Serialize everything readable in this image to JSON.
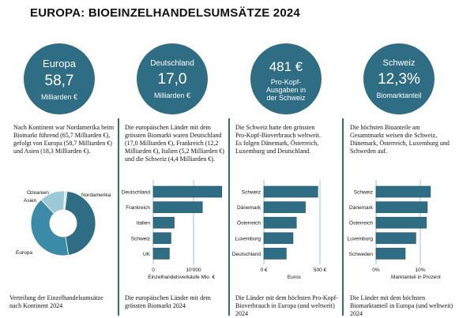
{
  "title": "EUROPA: BIOEINZELHANDELSUMSÄTZE 2024",
  "colors": {
    "primary": "#2f6d84",
    "europa": "#3b8aa8",
    "asien": "#9dc8d6",
    "ozeanien": "#cfe3ea",
    "gridline": "#a9cfdb"
  },
  "circles": [
    {
      "label": "Europa",
      "value": "58,7",
      "unit": "Milliarden €"
    },
    {
      "label": "Deutschland",
      "value": "17,0",
      "unit": "Milliarden €"
    },
    {
      "label": "481 €",
      "value": "",
      "unit": "Pro-Kopf-Ausgaben in der Schweiz"
    },
    {
      "label": "Schweiz",
      "value": "12,3%",
      "unit": "Biomarktanteil"
    }
  ],
  "texts": [
    "Nach Kontinent war Nordamerika beim Biomarkt führend (65,7 Milliarden €), gefolgt von Europa (58,7 Milliarden €) und Asien (18,3 Milliarden €).",
    "Die europäischen Länder mit dem grössten Biomarkt waren Deutschland (17,0 Milliarden €), Frankreich (12,2 Milliarden €), Italien (5,2 Milliarden €) und die Schweiz (4,4  Milliarden €).",
    "Die Schweiz hatte den grössten Pro-Kopf-Bioverbrauch weltweit. Es folgen Dänemark, Österreich, Luxemburg und Deutschland.",
    "Die höchsten Bioanteile am Gesamtmarkt weisen die Schweiz, Dänemark, Österreich, Luxemburg und Schweden auf."
  ],
  "captions": [
    "Verteilung der Einzelhandelsumsätze nach Kontinent 2024",
    "Die europäischen  Länder mit dem grössten Biomarkt 2024",
    "Die Länder mit dem höchsten Pro-Kopf-Bioverbrauch in Europa (und weltweit) 2024",
    "Die Länder mit dem höchsten Biomarktanteil in Europa (und weltweit) 2024"
  ],
  "chart_data": [
    {
      "type": "pie",
      "donut": true,
      "categories": [
        "Nordamerika",
        "Europa",
        "Asien",
        "Ozeanien"
      ],
      "values": [
        65.7,
        58.7,
        18.3,
        1.8
      ],
      "unit": "Milliarden €"
    },
    {
      "type": "bar",
      "orientation": "horizontal",
      "categories": [
        "Deutschland",
        "Frankreich",
        "Italien",
        "Schweiz",
        "UK"
      ],
      "values": [
        17000,
        12200,
        5200,
        4400,
        4000
      ],
      "xlabel": "Einzelhandelsverkäufe Mio. €",
      "xticks": [
        {
          "v": 0,
          "label": "0"
        },
        {
          "v": 10000,
          "label": "10'000"
        }
      ],
      "xlim": [
        0,
        17000
      ]
    },
    {
      "type": "bar",
      "orientation": "horizontal",
      "categories": [
        "Schweiz",
        "Dänemark",
        "Österreich",
        "Luxemburg",
        "Deutschland"
      ],
      "values": [
        481,
        370,
        290,
        260,
        200
      ],
      "xlabel": "Euros",
      "xticks": [
        {
          "v": 0,
          "label": "0 €"
        },
        {
          "v": 500,
          "label": "500 €"
        }
      ],
      "xlim": [
        0,
        500
      ]
    },
    {
      "type": "bar",
      "orientation": "horizontal",
      "categories": [
        "Schweiz",
        "Dänemark",
        "Österreich",
        "Luxemburg",
        "Schweden"
      ],
      "values": [
        12.3,
        11.6,
        11.4,
        9.0,
        6.6
      ],
      "xlabel": "Marktanteil in Prozent",
      "xticks": [
        {
          "v": 0,
          "label": "0%"
        },
        {
          "v": 10,
          "label": "10%"
        }
      ],
      "xlim": [
        0,
        12.3
      ]
    }
  ]
}
